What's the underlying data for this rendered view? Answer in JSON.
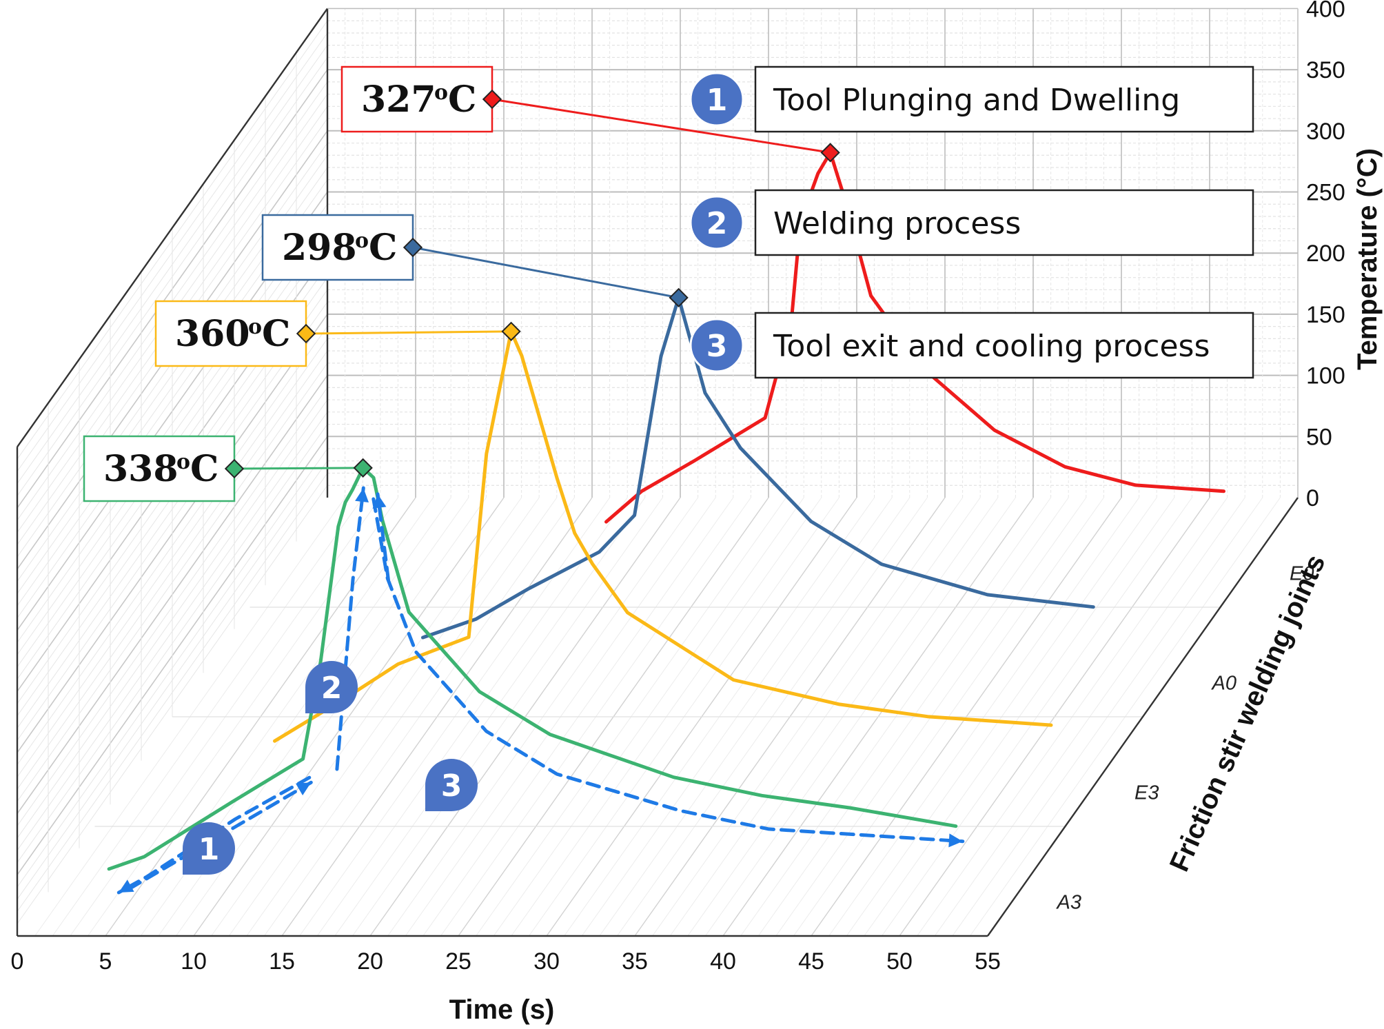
{
  "chart_data": {
    "type": "line",
    "style": "3d-stacked",
    "title": "",
    "xlabel": "Time (s)",
    "ylabel": "Temperature (°C)",
    "zlabel": "Friction stir welding joints",
    "xlim": [
      0,
      55
    ],
    "ylim": [
      0,
      400
    ],
    "x_ticks": [
      "0",
      "5",
      "10",
      "15",
      "20",
      "25",
      "30",
      "35",
      "40",
      "45",
      "50",
      "55"
    ],
    "y_ticks": [
      "0",
      "50",
      "100",
      "150",
      "200",
      "250",
      "300",
      "350",
      "400"
    ],
    "z_categories": [
      "A3",
      "E3",
      "A0",
      "E0"
    ],
    "colors": {
      "A3": "#3cb371",
      "E3": "#fbb917",
      "A0": "#3a6a9e",
      "E0": "#ee1c1c",
      "process_arrow": "#1e7ae6",
      "badge": "#4a72c4",
      "grid": "#cfcfcf",
      "frame": "#333333"
    },
    "series": [
      {
        "name": "A3",
        "peak_label": "338",
        "peak_unit": "oC",
        "peak_x": 17.4,
        "peak_y": 338,
        "x": [
          3,
          5,
          10,
          14,
          15,
          16,
          16.4,
          16.8,
          17.4,
          18,
          18.5,
          20,
          24,
          28,
          35,
          40,
          45,
          51
        ],
        "y": [
          10,
          20,
          65,
          100,
          180,
          290,
          310,
          320,
          338,
          330,
          295,
          220,
          155,
          120,
          85,
          70,
          60,
          45
        ]
      },
      {
        "name": "E3",
        "peak_label": "360",
        "peak_unit": "oC",
        "peak_x": 21.4,
        "peak_y": 360,
        "x": [
          8,
          12,
          15,
          19,
          20,
          21.4,
          22,
          24,
          25,
          26,
          28,
          34,
          40,
          45,
          50,
          52
        ],
        "y": [
          25,
          60,
          88,
          110,
          260,
          360,
          340,
          240,
          195,
          170,
          130,
          75,
          55,
          45,
          40,
          38
        ]
      },
      {
        "name": "A0",
        "peak_label": "298",
        "peak_unit": "oC",
        "peak_x": 26.5,
        "peak_y": 298,
        "x": [
          12,
          15,
          18,
          22,
          24,
          25.5,
          26.5,
          28,
          30,
          34,
          38,
          44,
          50
        ],
        "y": [
          20,
          35,
          60,
          90,
          120,
          250,
          298,
          220,
          175,
          115,
          80,
          55,
          45
        ]
      },
      {
        "name": "E0",
        "peak_label": "327",
        "peak_unit": "oC",
        "peak_x": 30.7,
        "peak_y": 327,
        "x": [
          18,
          20,
          23,
          27,
          28.5,
          29,
          30,
          30.7,
          31.5,
          33,
          36,
          40,
          44,
          48,
          53
        ],
        "y": [
          25,
          50,
          75,
          110,
          190,
          270,
          310,
          327,
          290,
          210,
          150,
          100,
          70,
          55,
          50
        ]
      }
    ],
    "annotations": [
      {
        "number": "1",
        "label": "Tool Plunging and Dwelling"
      },
      {
        "number": "2",
        "label": "Welding process"
      },
      {
        "number": "3",
        "label": "Tool exit and cooling process"
      }
    ],
    "grid": true,
    "legend_position": "top-right"
  }
}
